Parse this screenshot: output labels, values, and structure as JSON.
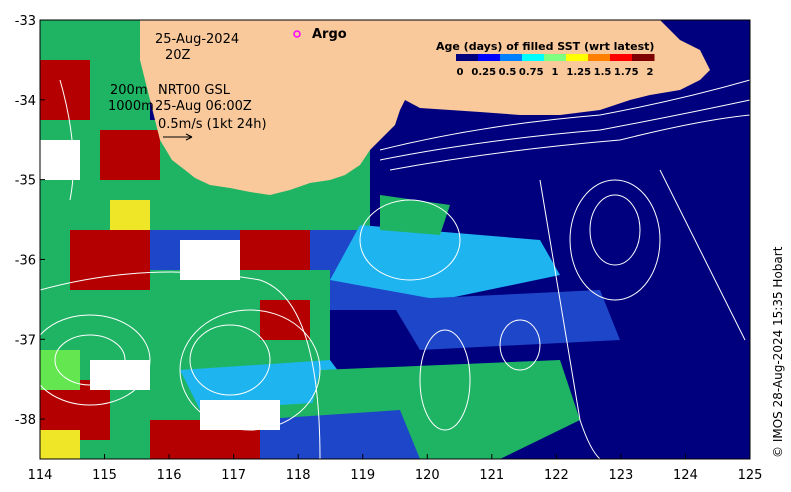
{
  "annotations": {
    "date": "25-Aug-2024",
    "time": "20Z",
    "depth_200": "200m",
    "product": "NRT00 GSL",
    "depth_1000": "1000m",
    "datetime": "25-Aug 06:00Z",
    "scale": "0.5m/s (1kt 24h)",
    "argo": "Argo"
  },
  "legend": {
    "title": "Age (days) of filled SST (wrt latest)",
    "ticks": [
      "0",
      "0.25",
      "0.5",
      "0.75",
      "1",
      "1.25",
      "1.5",
      "1.75",
      "2"
    ],
    "colors": [
      "#00007f",
      "#0000ff",
      "#007fff",
      "#00ffff",
      "#7fff7f",
      "#ffff00",
      "#ff7f00",
      "#ff0000",
      "#7f0000"
    ]
  },
  "axes": {
    "x_ticks": [
      "114",
      "115",
      "116",
      "117",
      "118",
      "119",
      "120",
      "121",
      "122",
      "123",
      "124",
      "125"
    ],
    "y_ticks": [
      "-33",
      "-34",
      "-35",
      "-36",
      "-37",
      "-38"
    ],
    "xlim": [
      114,
      125
    ],
    "ylim": [
      -38.5,
      -33
    ]
  },
  "colors": {
    "land": "#f9c89b",
    "deep": "#00007f",
    "blue": "#1e46c8",
    "cyan": "#1eb4f0",
    "green": "#1eb464",
    "lime": "#64e650",
    "yellow": "#f0e628",
    "red": "#b40000",
    "argo_marker": "#ff00ff"
  },
  "credit": "© IMOS 28-Aug-2024 15:35 Hobart"
}
